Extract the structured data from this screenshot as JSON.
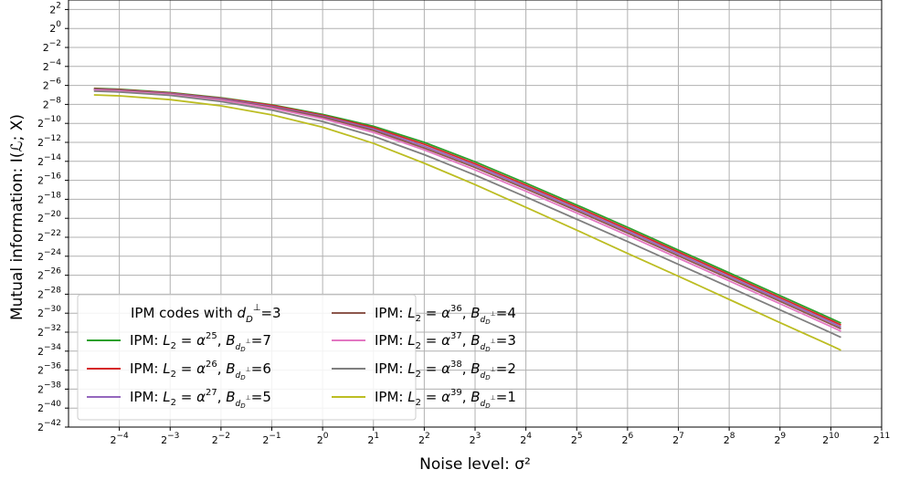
{
  "chart_data": {
    "type": "line",
    "xlabel": "Noise level: σ²",
    "ylabel": "Mutual information: I(ℒ; X)",
    "x_scale": "log2",
    "y_scale": "log2",
    "xlim_exponent": [
      -5,
      11
    ],
    "ylim_exponent": [
      -42,
      3
    ],
    "x_tick_exponents": [
      -4,
      -3,
      -2,
      -1,
      0,
      1,
      2,
      3,
      4,
      5,
      6,
      7,
      8,
      9,
      10,
      11
    ],
    "y_tick_exponents": [
      2,
      0,
      -2,
      -4,
      -6,
      -8,
      -10,
      -12,
      -14,
      -16,
      -18,
      -20,
      -22,
      -24,
      -26,
      -28,
      -30,
      -32,
      -34,
      -36,
      -38,
      -40,
      -42
    ],
    "grid": true,
    "legend": {
      "placement": "lower-left",
      "title_parts": [
        "IPM codes with ",
        "d",
        "D",
        "⊥",
        "=3"
      ],
      "ncol": 2
    },
    "x_exponents": [
      -4.5,
      -4,
      -3,
      -2,
      -1,
      0,
      1,
      2,
      3,
      4,
      5,
      6,
      7,
      8,
      9,
      10,
      10.2
    ],
    "series": [
      {
        "name": "IPM: L₂ = α²⁵, B_dD⊥ =7",
        "L2_exp": "25",
        "B": "7",
        "color": "#2ca02c",
        "y_exponents": [
          -6.3,
          -6.4,
          -6.75,
          -7.3,
          -8.05,
          -9.05,
          -10.3,
          -12.0,
          -14.05,
          -16.3,
          -18.6,
          -20.95,
          -23.35,
          -25.75,
          -28.15,
          -30.55,
          -31.05
        ]
      },
      {
        "name": "IPM: L₂ = α²⁶, B_dD⊥ =6",
        "L2_exp": "26",
        "B": "6",
        "color": "#d62728",
        "y_exponents": [
          -6.35,
          -6.45,
          -6.8,
          -7.35,
          -8.1,
          -9.15,
          -10.45,
          -12.2,
          -14.25,
          -16.5,
          -18.8,
          -21.15,
          -23.55,
          -25.95,
          -28.35,
          -30.75,
          -31.25
        ]
      },
      {
        "name": "IPM: L₂ = α²⁷, B_dD⊥ =5",
        "L2_exp": "27",
        "B": "5",
        "color": "#9467bd",
        "y_exponents": [
          -6.4,
          -6.5,
          -6.85,
          -7.4,
          -8.2,
          -9.25,
          -10.6,
          -12.4,
          -14.45,
          -16.7,
          -19.0,
          -21.35,
          -23.75,
          -26.15,
          -28.55,
          -30.95,
          -31.45
        ]
      },
      {
        "name": "IPM: L₂ = α³⁶, B_dD⊥ =4",
        "L2_exp": "36",
        "B": "4",
        "color": "#8c564b",
        "y_exponents": [
          -6.45,
          -6.55,
          -6.9,
          -7.5,
          -8.3,
          -9.35,
          -10.75,
          -12.6,
          -14.65,
          -16.9,
          -19.2,
          -21.55,
          -23.95,
          -26.35,
          -28.75,
          -31.15,
          -31.65
        ]
      },
      {
        "name": "IPM: L₂ = α³⁷, B_dD⊥ =3",
        "L2_exp": "37",
        "B": "3",
        "color": "#e377c2",
        "y_exponents": [
          -6.5,
          -6.6,
          -6.95,
          -7.55,
          -8.4,
          -9.5,
          -10.95,
          -12.8,
          -14.9,
          -17.15,
          -19.45,
          -21.8,
          -24.2,
          -26.6,
          -29.0,
          -31.4,
          -31.9
        ]
      },
      {
        "name": "IPM: L₂ = α³⁸, B_dD⊥ =2",
        "L2_exp": "38",
        "B": "2",
        "color": "#7f7f7f",
        "y_exponents": [
          -6.6,
          -6.7,
          -7.05,
          -7.7,
          -8.6,
          -9.8,
          -11.35,
          -13.3,
          -15.45,
          -17.75,
          -20.1,
          -22.45,
          -24.85,
          -27.25,
          -29.65,
          -32.05,
          -32.55
        ]
      },
      {
        "name": "IPM: L₂ = α³⁹, B_dD⊥ =1",
        "L2_exp": "39",
        "B": "1",
        "color": "#bcbd22",
        "y_exponents": [
          -7.0,
          -7.1,
          -7.5,
          -8.15,
          -9.1,
          -10.4,
          -12.1,
          -14.2,
          -16.45,
          -18.85,
          -21.25,
          -23.7,
          -26.1,
          -28.55,
          -31.0,
          -33.4,
          -33.9
        ]
      }
    ]
  }
}
